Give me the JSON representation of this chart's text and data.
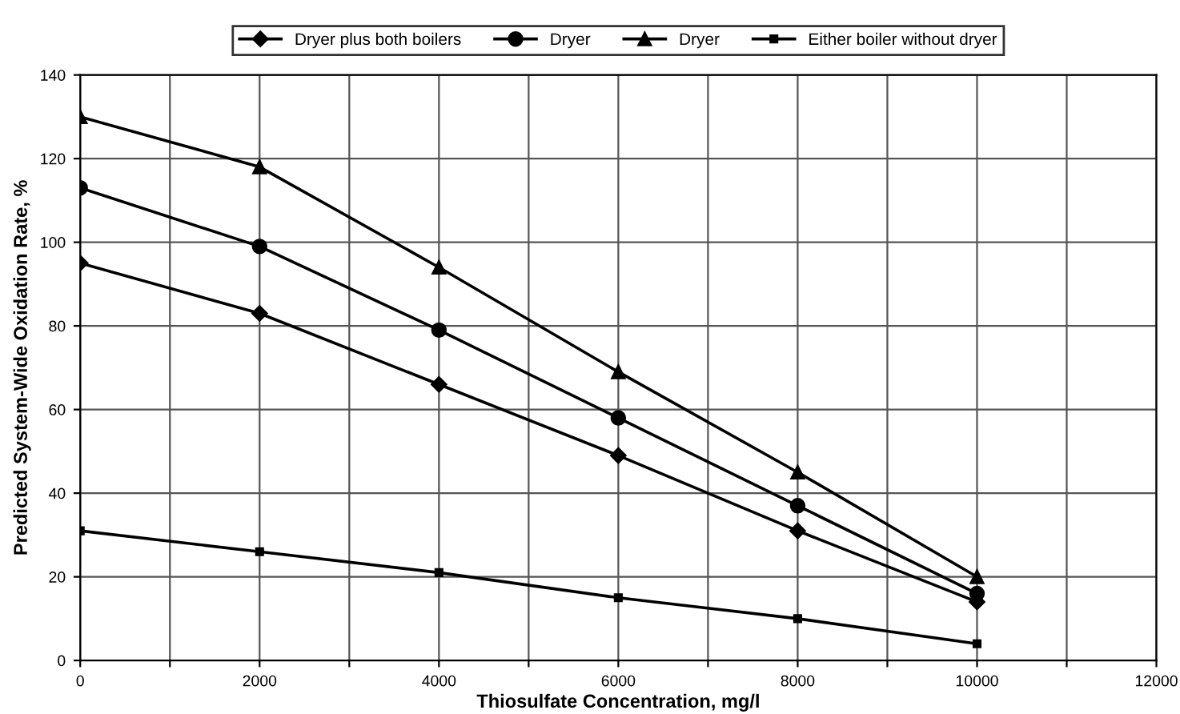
{
  "chart_data": {
    "type": "line",
    "xlabel": "Thiosulfate Concentration, mg/l",
    "ylabel": "Predicted System-Wide Oxidation Rate, %",
    "x": [
      0,
      2000,
      4000,
      6000,
      8000,
      10000
    ],
    "series": [
      {
        "name": "Dryer plus both boilers",
        "color": "#000000",
        "marker": "diamond",
        "values": [
          95,
          83,
          66,
          49,
          31,
          14
        ]
      },
      {
        "name": "Dryer",
        "color": "#000000",
        "marker": "circle",
        "values": [
          113,
          99,
          79,
          58,
          37,
          16
        ]
      },
      {
        "name": "Dryer",
        "color": "#000000",
        "marker": "triangle",
        "values": [
          130,
          118,
          94,
          69,
          45,
          20
        ]
      },
      {
        "name": "Either boiler without dryer",
        "color": "#000000",
        "marker": "square",
        "values": [
          31,
          26,
          21,
          15,
          10,
          4
        ]
      }
    ],
    "xlim": [
      0,
      12000
    ],
    "xticks": [
      0,
      {
        "value": 1000,
        "label": null
      },
      2000,
      {
        "value": 3000,
        "label": null
      },
      4000,
      {
        "value": 5000,
        "label": null
      },
      6000,
      {
        "value": 7000,
        "label": null
      },
      8000,
      {
        "value": 9000,
        "label": null
      },
      10000,
      {
        "value": 11000,
        "label": null
      },
      12000
    ],
    "ylim": [
      0,
      140
    ],
    "yticks": [
      0,
      20,
      40,
      60,
      80,
      100,
      120,
      140
    ],
    "grid": true,
    "legend": "top",
    "line_style": "solid"
  }
}
